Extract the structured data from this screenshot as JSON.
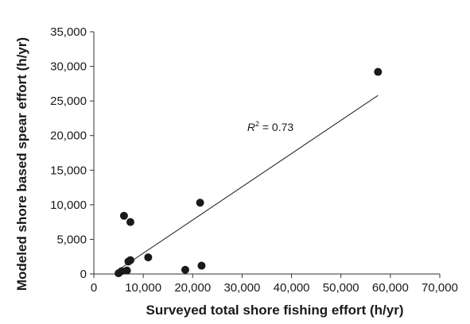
{
  "chart_data": {
    "type": "scatter",
    "title": "",
    "xlabel": "Surveyed total shore fishing effort (h/yr)",
    "ylabel": "Modeled shore based spear effort (h/yr)",
    "xlim": [
      0,
      70000
    ],
    "ylim": [
      0,
      35000
    ],
    "x_ticks": [
      0,
      10000,
      20000,
      30000,
      40000,
      50000,
      60000,
      70000
    ],
    "y_ticks": [
      0,
      5000,
      10000,
      15000,
      20000,
      25000,
      30000,
      35000
    ],
    "x_tick_labels": [
      "0",
      "10,000",
      "20,000",
      "30,000",
      "40,000",
      "50,000",
      "60,000",
      "70,000"
    ],
    "y_tick_labels": [
      "0",
      "5,000",
      "10,000",
      "15,000",
      "20,000",
      "25,000",
      "30,000",
      "35,000"
    ],
    "grid": false,
    "legend": "none",
    "points": [
      {
        "x": 5000,
        "y": 100
      },
      {
        "x": 5600,
        "y": 400
      },
      {
        "x": 6100,
        "y": 8400
      },
      {
        "x": 6700,
        "y": 500
      },
      {
        "x": 7000,
        "y": 1800
      },
      {
        "x": 7400,
        "y": 2000
      },
      {
        "x": 7400,
        "y": 7500
      },
      {
        "x": 11000,
        "y": 2400
      },
      {
        "x": 18500,
        "y": 600
      },
      {
        "x": 21500,
        "y": 10300
      },
      {
        "x": 21800,
        "y": 1200
      },
      {
        "x": 57500,
        "y": 29200
      }
    ],
    "trendline": {
      "x": [
        5000,
        57500
      ],
      "y": [
        600,
        25800
      ]
    },
    "annotation": {
      "prefix": "R",
      "superscript": "2",
      "suffix": " = 0.73",
      "x": 36500,
      "y": 21000
    },
    "colors": {
      "points": "#1a1a1a",
      "line": "#1a1a1a",
      "axis": "#333333"
    }
  }
}
